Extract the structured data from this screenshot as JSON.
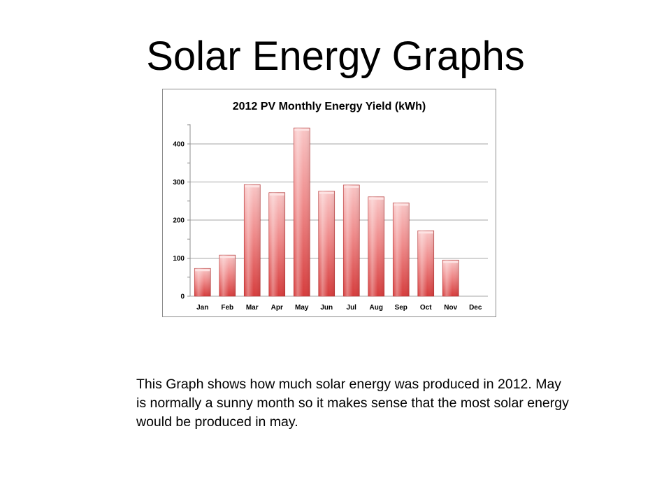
{
  "slide": {
    "title": "Solar Energy Graphs",
    "caption": "This Graph shows how much solar energy was produced in 2012.   May is normally  a sunny month so it makes sense that the most solar energy would be produced in may."
  },
  "colors": {
    "bar_light": "#f7b5b5",
    "bar_mid": "#ef8080",
    "bar_dark": "#d43a3a",
    "gridline": "#a6a6a6",
    "frame": "#8c8c8c"
  },
  "chart_data": {
    "type": "bar",
    "title": "2012 PV Monthly Energy Yield (kWh)",
    "xlabel": "",
    "ylabel": "",
    "categories": [
      "Jan",
      "Feb",
      "Mar",
      "Apr",
      "May",
      "Jun",
      "Jul",
      "Aug",
      "Sep",
      "Oct",
      "Nov",
      "Dec"
    ],
    "values": [
      73,
      108,
      293,
      272,
      442,
      276,
      292,
      261,
      245,
      172,
      95,
      null
    ],
    "ylim": [
      0,
      450
    ],
    "yticks": [
      0,
      100,
      200,
      300,
      400
    ],
    "grid": true,
    "legend": "none"
  }
}
